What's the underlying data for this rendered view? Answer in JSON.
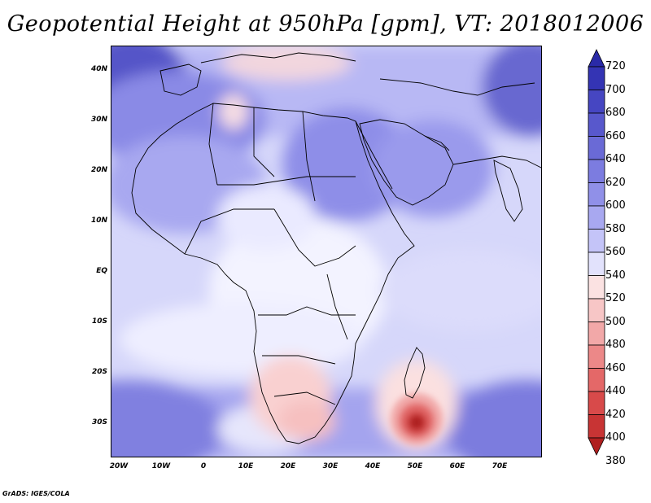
{
  "title": "Geopotential Height at 950hPa [gpm], VT: 2018012006",
  "footer": "GrADS: IGES/COLA",
  "lat_labels": [
    "40N",
    "30N",
    "20N",
    "10N",
    "EQ",
    "10S",
    "20S",
    "30S"
  ],
  "lon_labels": [
    "20W",
    "10W",
    "0",
    "10E",
    "20E",
    "30E",
    "40E",
    "50E",
    "60E",
    "70E"
  ],
  "colorbar": {
    "levels": [
      "720",
      "700",
      "680",
      "660",
      "640",
      "620",
      "600",
      "580",
      "560",
      "540",
      "520",
      "500",
      "480",
      "460",
      "440",
      "420",
      "400",
      "380"
    ],
    "colors": [
      "#2a2aa8",
      "#3434b4",
      "#4646c2",
      "#5858cc",
      "#6a6ad6",
      "#7c7ce0",
      "#9090e8",
      "#a8a8f0",
      "#c4c4f8",
      "#e2e2fc",
      "#fbe2e2",
      "#f7c6c6",
      "#f2a8a8",
      "#ec8888",
      "#e46868",
      "#d84a4a",
      "#c83434",
      "#b02020"
    ]
  },
  "map": {
    "region": "Africa and Middle East",
    "variable": "Geopotential Height",
    "level": "950hPa",
    "units": "gpm",
    "valid_time": "2018012006"
  }
}
